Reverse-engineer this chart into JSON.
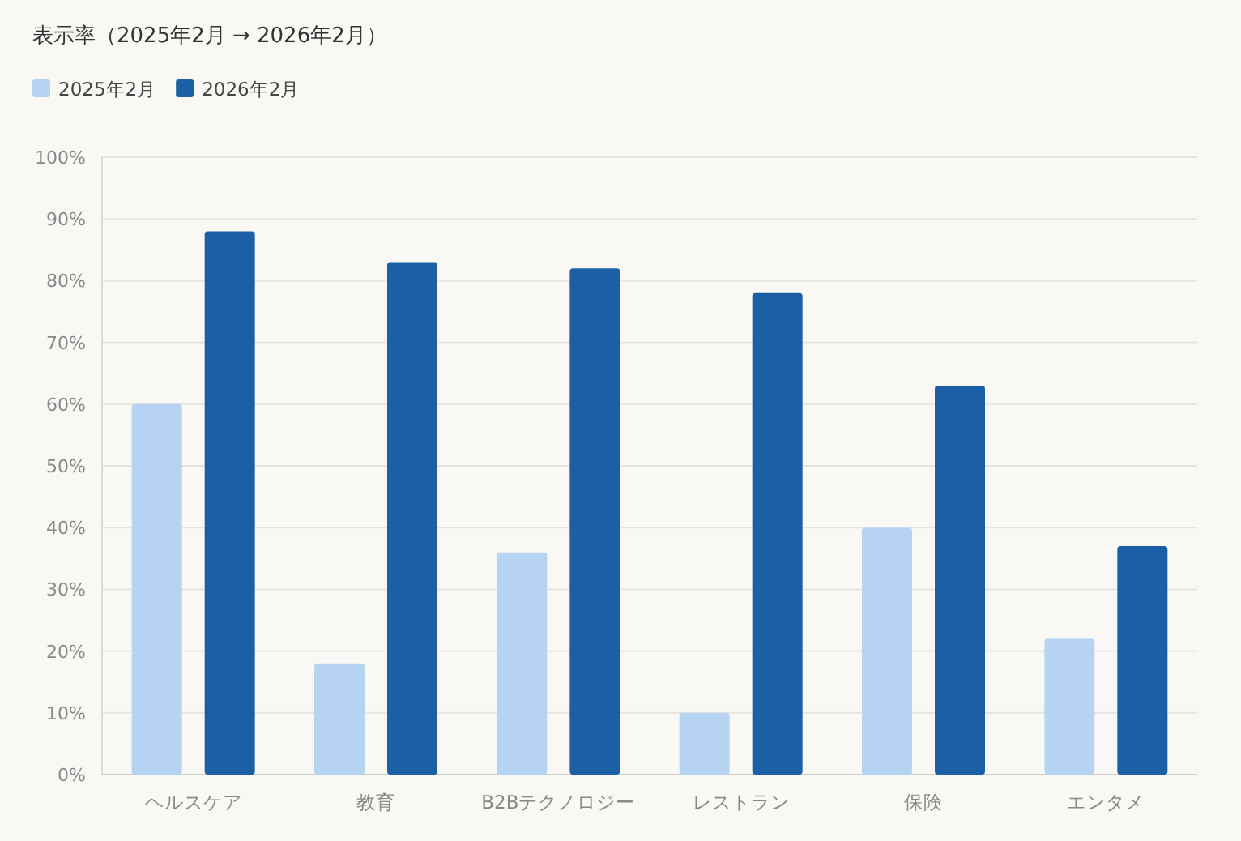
{
  "chart_data": {
    "type": "bar",
    "title": "表示率（2025年2月 → 2026年2月）",
    "categories": [
      "ヘルスケア",
      "教育",
      "B2Bテクノロジー",
      "レストラン",
      "保険",
      "エンタメ"
    ],
    "series": [
      {
        "name": "2025年2月",
        "color": "#b6d4f2",
        "values": [
          60,
          18,
          36,
          10,
          40,
          22
        ]
      },
      {
        "name": "2026年2月",
        "color": "#1b5fa5",
        "values": [
          88,
          83,
          82,
          78,
          63,
          37
        ]
      }
    ],
    "ylim": [
      0,
      100
    ],
    "yticks": [
      {
        "value": 0,
        "label": "0%"
      },
      {
        "value": 10,
        "label": "10%"
      },
      {
        "value": 20,
        "label": "20%"
      },
      {
        "value": 30,
        "label": "30%"
      },
      {
        "value": 40,
        "label": "40%"
      },
      {
        "value": 50,
        "label": "50%"
      },
      {
        "value": 60,
        "label": "60%"
      },
      {
        "value": 70,
        "label": "70%"
      },
      {
        "value": 80,
        "label": "80%"
      },
      {
        "value": 90,
        "label": "90%"
      },
      {
        "value": 100,
        "label": "100%"
      }
    ],
    "grid": "y",
    "legend": "top left"
  }
}
